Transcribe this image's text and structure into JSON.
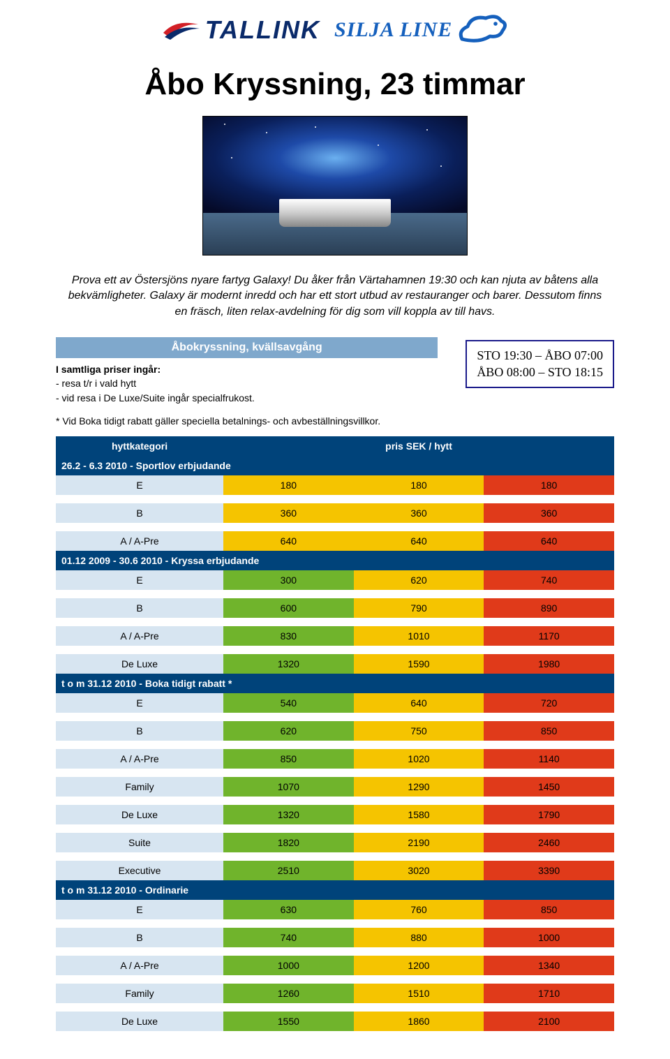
{
  "logo": {
    "tallink_text": "TALLINK",
    "silja_text": "SILJA LINE",
    "tallink_color": "#0a2a6a",
    "silja_color": "#1560bd"
  },
  "page_title": "Åbo Kryssning, 23 timmar",
  "intro": "Prova ett av Östersjöns nyare fartyg Galaxy! Du åker från Värtahamnen 19:30 och kan njuta av båtens alla bekvämligheter. Galaxy är modernt inredd och har ett stort utbud av restauranger och barer. Dessutom finns en fräsch, liten relax-avdelning för dig som vill koppla av till havs.",
  "inclusions": {
    "banner": "Åbokryssning, kvällsavgång",
    "banner_bg": "#7fa8cc",
    "lead": "I samtliga priser ingår:",
    "items": [
      "- resa t/r i vald hytt",
      "- vid resa i De Luxe/Suite ingår specialfrukost."
    ]
  },
  "schedule": {
    "line1": "STO 19:30 – ÅBO 07:00",
    "line2": "ÅBO 08:00 – STO 18:15",
    "border_color": "#1a1a8a"
  },
  "footnote": "* Vid Boka tidigt rabatt gäller speciella betalnings- och avbeställningsvillkor.",
  "table": {
    "header_bg": "#00437a",
    "header_cols": [
      "hyttkategori",
      "pris SEK / hytt"
    ],
    "cat_bg": "#d7e5f1",
    "colors": {
      "green": "#70b42c",
      "yellow": "#f5c400",
      "red": "#e03a1a"
    },
    "sections": [
      {
        "title": "26.2 - 6.3 2010 - Sportlov erbjudande",
        "title_bg": "#00437a",
        "rows": [
          {
            "cat": "E",
            "v": [
              "180",
              "180",
              "180"
            ],
            "c": [
              "yellow",
              "yellow",
              "red"
            ]
          },
          {
            "cat": "B",
            "v": [
              "360",
              "360",
              "360"
            ],
            "c": [
              "yellow",
              "yellow",
              "red"
            ]
          },
          {
            "cat": "A / A-Pre",
            "v": [
              "640",
              "640",
              "640"
            ],
            "c": [
              "yellow",
              "yellow",
              "red"
            ]
          }
        ]
      },
      {
        "title": "01.12 2009 - 30.6 2010 - Kryssa erbjudande",
        "title_bg": "#00437a",
        "rows": [
          {
            "cat": "E",
            "v": [
              "300",
              "620",
              "740"
            ],
            "c": [
              "green",
              "yellow",
              "red"
            ]
          },
          {
            "cat": "B",
            "v": [
              "600",
              "790",
              "890"
            ],
            "c": [
              "green",
              "yellow",
              "red"
            ]
          },
          {
            "cat": "A / A-Pre",
            "v": [
              "830",
              "1010",
              "1170"
            ],
            "c": [
              "green",
              "yellow",
              "red"
            ]
          },
          {
            "cat": "De Luxe",
            "v": [
              "1320",
              "1590",
              "1980"
            ],
            "c": [
              "green",
              "yellow",
              "red"
            ]
          }
        ]
      },
      {
        "title": "t o m  31.12 2010  - Boka tidigt rabatt *",
        "title_bg": "#00437a",
        "rows": [
          {
            "cat": "E",
            "v": [
              "540",
              "640",
              "720"
            ],
            "c": [
              "green",
              "yellow",
              "red"
            ]
          },
          {
            "cat": "B",
            "v": [
              "620",
              "750",
              "850"
            ],
            "c": [
              "green",
              "yellow",
              "red"
            ]
          },
          {
            "cat": "A / A-Pre",
            "v": [
              "850",
              "1020",
              "1140"
            ],
            "c": [
              "green",
              "yellow",
              "red"
            ]
          },
          {
            "cat": "Family",
            "v": [
              "1070",
              "1290",
              "1450"
            ],
            "c": [
              "green",
              "yellow",
              "red"
            ]
          },
          {
            "cat": "De Luxe",
            "v": [
              "1320",
              "1580",
              "1790"
            ],
            "c": [
              "green",
              "yellow",
              "red"
            ]
          },
          {
            "cat": "Suite",
            "v": [
              "1820",
              "2190",
              "2460"
            ],
            "c": [
              "green",
              "yellow",
              "red"
            ]
          },
          {
            "cat": "Executive",
            "v": [
              "2510",
              "3020",
              "3390"
            ],
            "c": [
              "green",
              "yellow",
              "red"
            ]
          }
        ]
      },
      {
        "title": "t o m  31.12 2010  - Ordinarie",
        "title_bg": "#00437a",
        "rows": [
          {
            "cat": "E",
            "v": [
              "630",
              "760",
              "850"
            ],
            "c": [
              "green",
              "yellow",
              "red"
            ]
          },
          {
            "cat": "B",
            "v": [
              "740",
              "880",
              "1000"
            ],
            "c": [
              "green",
              "yellow",
              "red"
            ]
          },
          {
            "cat": "A / A-Pre",
            "v": [
              "1000",
              "1200",
              "1340"
            ],
            "c": [
              "green",
              "yellow",
              "red"
            ]
          },
          {
            "cat": "Family",
            "v": [
              "1260",
              "1510",
              "1710"
            ],
            "c": [
              "green",
              "yellow",
              "red"
            ]
          },
          {
            "cat": "De Luxe",
            "v": [
              "1550",
              "1860",
              "2100"
            ],
            "c": [
              "green",
              "yellow",
              "red"
            ]
          }
        ]
      }
    ]
  }
}
